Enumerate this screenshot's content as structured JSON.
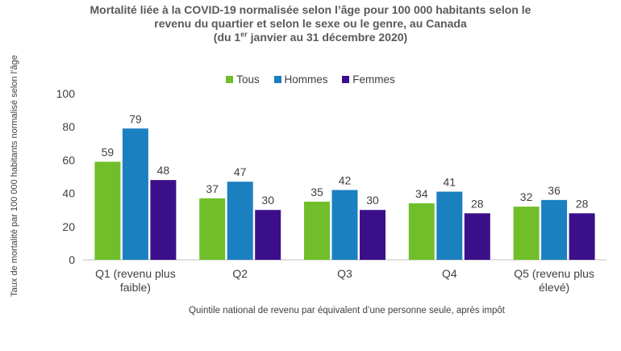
{
  "title": {
    "line1": "Mortalité liée à la COVID-19 normalisée selon l’âge pour 100 000 habitants  selon le",
    "line2": "revenu du quartier et selon le sexe ou le genre, au Canada",
    "line3_pre": "(du 1",
    "line3_sup": "er",
    "line3_post": " janvier au 31 décembre 2020)"
  },
  "chart_data": {
    "type": "bar",
    "categories": [
      [
        "Q1 (revenu plus",
        "faible)"
      ],
      [
        "Q2"
      ],
      [
        "Q3"
      ],
      [
        "Q4"
      ],
      [
        "Q5 (revenu plus",
        "élevé)"
      ]
    ],
    "series": [
      {
        "name": "Tous",
        "color": "#70bf2a",
        "values": [
          59,
          37,
          35,
          34,
          32
        ]
      },
      {
        "name": "Hommes",
        "color": "#1b80c0",
        "values": [
          79,
          47,
          42,
          41,
          36
        ]
      },
      {
        "name": "Femmes",
        "color": "#3c0f8a",
        "values": [
          48,
          30,
          30,
          28,
          28
        ]
      }
    ],
    "ylim": [
      0,
      100
    ],
    "yticks": [
      0,
      20,
      40,
      60,
      80,
      100
    ],
    "xlabel": "Quintile national de revenu par équivalent d’une personne seule, après impôt",
    "ylabel": "Taux de mortalité par 100 000 habitants normalisé selon l’âge",
    "legend_position": "top",
    "grid": false
  }
}
